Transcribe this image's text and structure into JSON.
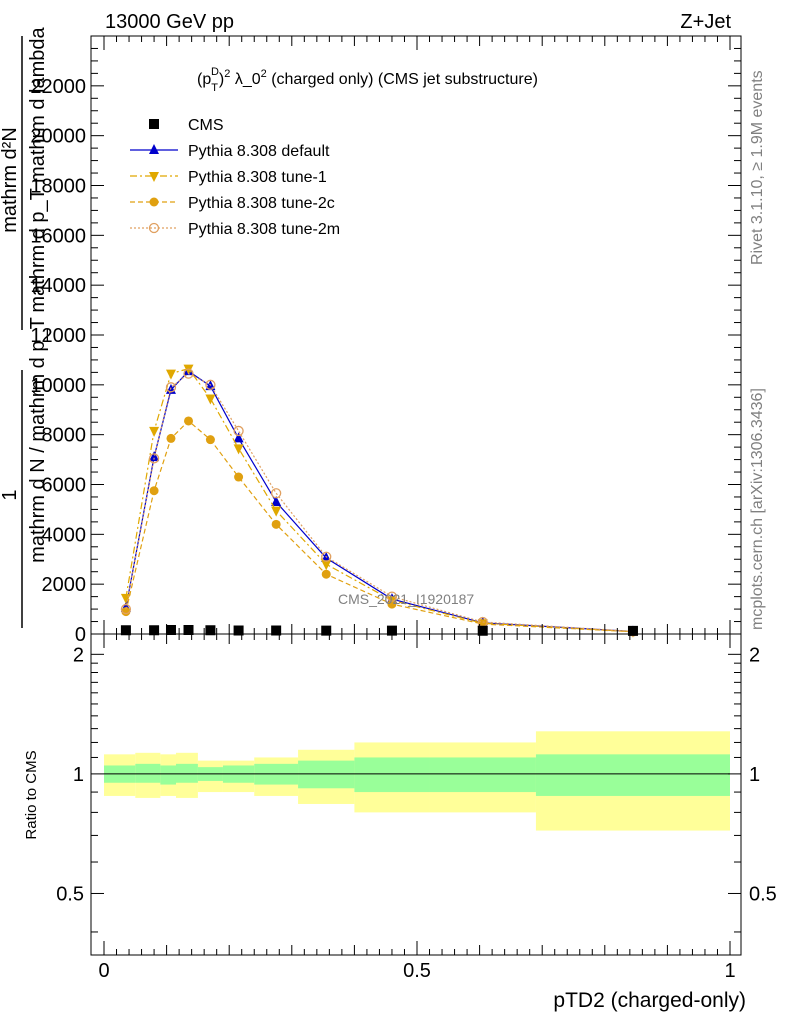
{
  "header": {
    "left": "13000 GeV pp",
    "right": "Z+Jet"
  },
  "side_labels": {
    "rivet": "Rivet 3.1.10, ≥ 1.9M events",
    "mcplots": "mcplots.cern.ch [arXiv:1306.3436]"
  },
  "chart_data": {
    "type": "line",
    "title": "(p_T^D)^2 λ_0^2 (charged only) (CMS jet substructure)",
    "title_parts": {
      "p": "(p",
      "sub": "T",
      "sup": "D",
      "close": ")",
      "exp": "2",
      "mid": " λ_0",
      "rest": " (charged only) (CMS jet substructure)"
    },
    "xlabel": "pTD2 (charged-only)",
    "ylabel_main": {
      "numerator": "mathrm d²N",
      "denominator": "mathrm d p_T mathrm d lambda",
      "prefactor_num": "1",
      "prefactor_den": "mathrm d N / mathrm d p_T"
    },
    "ylabel_ratio": "Ratio to CMS",
    "watermark": "CMS_2021_I1920187",
    "xlim": [
      0,
      1
    ],
    "ylim": [
      0,
      24000
    ],
    "ratio_ylim": [
      0.35,
      2.25
    ],
    "x_ticks": [
      0,
      0.5,
      1
    ],
    "x_tick_labels": [
      "0",
      "0.5",
      "1"
    ],
    "y_ticks": [
      0,
      2000,
      4000,
      6000,
      8000,
      10000,
      12000,
      14000,
      16000,
      18000,
      20000,
      22000
    ],
    "y_tick_labels": [
      "0",
      "2000",
      "4000",
      "6000",
      "8000",
      "10000",
      "12000",
      "14000",
      "16000",
      "18000",
      "20000",
      "22000"
    ],
    "ratio_ticks": [
      0.5,
      1,
      2
    ],
    "ratio_tick_labels": [
      "0.5",
      "1",
      "2"
    ],
    "legend_position": "top-left",
    "legend": [
      "CMS",
      "Pythia 8.308 default",
      "Pythia 8.308 tune-1",
      "Pythia 8.308 tune-2c",
      "Pythia 8.308 tune-2m"
    ],
    "x": [
      0.035,
      0.08,
      0.107,
      0.135,
      0.17,
      0.215,
      0.275,
      0.355,
      0.46,
      0.605,
      0.845
    ],
    "series": [
      {
        "name": "CMS",
        "color": "#000000",
        "marker": "square",
        "values": [
          30,
          30,
          40,
          40,
          30,
          20,
          20,
          15,
          15,
          10,
          5
        ]
      },
      {
        "name": "Pythia 8.308 default",
        "color": "#0000cc",
        "marker": "triangle-up",
        "dash": "",
        "values": [
          1050,
          7100,
          9800,
          10550,
          9950,
          7850,
          5300,
          3050,
          1400,
          450,
          100
        ]
      },
      {
        "name": "Pythia 8.308 tune-1",
        "color": "#e0a800",
        "marker": "triangle-down",
        "dash": "7,3,2,3",
        "values": [
          1450,
          8150,
          10450,
          10650,
          9450,
          7450,
          4950,
          2800,
          1350,
          430,
          95
        ]
      },
      {
        "name": "Pythia 8.308 tune-2c",
        "color": "#e0a010",
        "marker": "circle",
        "dash": "5,3",
        "values": [
          900,
          5750,
          7850,
          8550,
          7800,
          6300,
          4400,
          2400,
          1200,
          400,
          90
        ]
      },
      {
        "name": "Pythia 8.308 tune-2m",
        "color": "#e0a060",
        "marker": "open-circle",
        "dash": "2,2",
        "values": [
          1000,
          7050,
          9900,
          10450,
          10000,
          8150,
          5650,
          3100,
          1500,
          480,
          105
        ]
      }
    ],
    "ratio_bands": {
      "edges": [
        0,
        0.05,
        0.09,
        0.115,
        0.15,
        0.19,
        0.24,
        0.31,
        0.4,
        0.52,
        0.69,
        1.0
      ],
      "inner_low": [
        0.95,
        0.95,
        0.94,
        0.95,
        0.96,
        0.95,
        0.94,
        0.92,
        0.9,
        0.9,
        0.88
      ],
      "inner_high": [
        1.05,
        1.06,
        1.05,
        1.06,
        1.04,
        1.05,
        1.06,
        1.08,
        1.1,
        1.1,
        1.12
      ],
      "outer_low": [
        0.88,
        0.87,
        0.88,
        0.87,
        0.9,
        0.9,
        0.88,
        0.84,
        0.8,
        0.8,
        0.72
      ],
      "outer_high": [
        1.12,
        1.13,
        1.12,
        1.13,
        1.08,
        1.08,
        1.1,
        1.15,
        1.2,
        1.2,
        1.28
      ]
    },
    "colors": {
      "inner_band": "#99ff99",
      "outer_band": "#ffff99"
    }
  }
}
